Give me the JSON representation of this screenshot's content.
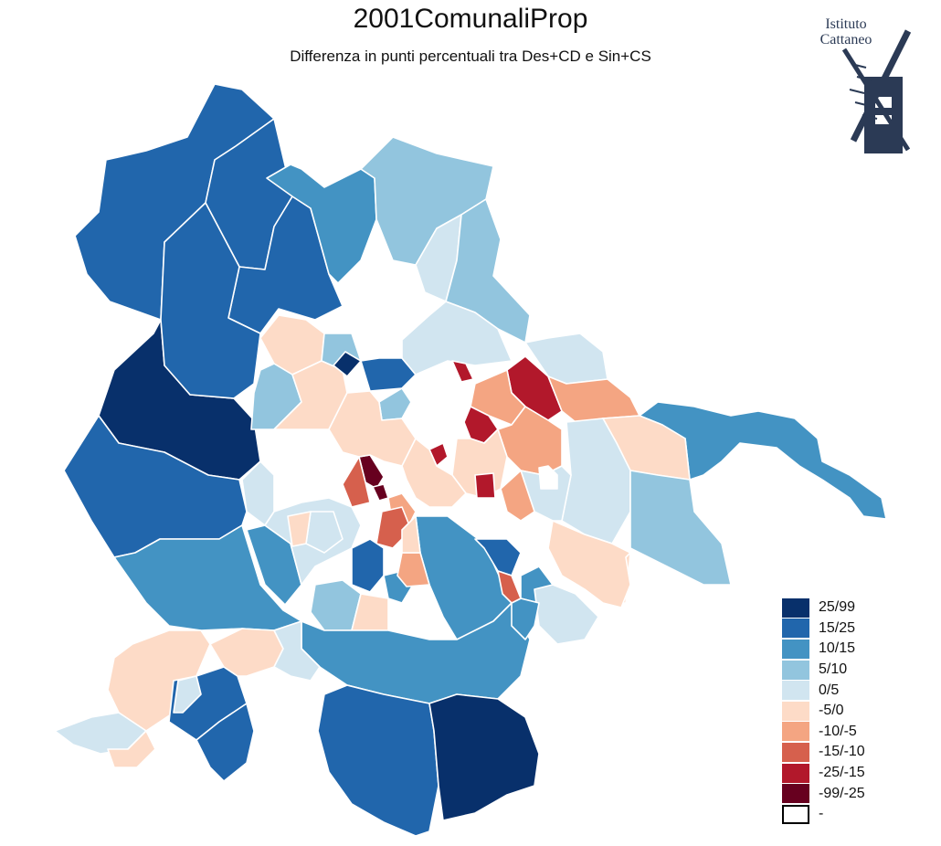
{
  "title": "2001ComunaliProp",
  "subtitle": "Differenza in punti percentuali tra Des+CD e Sin+CS",
  "logo": {
    "line1": "Istituto",
    "line2": "Cattaneo",
    "icon": "windmill-icon",
    "color": "#2b3a55"
  },
  "legend": [
    {
      "label": "25/99",
      "color": "#08306b"
    },
    {
      "label": "15/25",
      "color": "#2166ac"
    },
    {
      "label": "10/15",
      "color": "#4393c3"
    },
    {
      "label": "5/10",
      "color": "#92c5de"
    },
    {
      "label": "0/5",
      "color": "#d1e5f0"
    },
    {
      "label": "-5/0",
      "color": "#fddbc7"
    },
    {
      "label": "-10/-5",
      "color": "#f4a582"
    },
    {
      "label": "-15/-10",
      "color": "#d6604d"
    },
    {
      "label": "-25/-15",
      "color": "#b2182b"
    },
    {
      "label": "-99/-25",
      "color": "#67001f"
    },
    {
      "label": "-",
      "color": "#ffffff"
    }
  ],
  "regions": [
    {
      "id": "nw-outer",
      "class": "15/25"
    },
    {
      "id": "north-1",
      "class": "15/25"
    },
    {
      "id": "north-2",
      "class": "15/25"
    },
    {
      "id": "north-3",
      "class": "10/15"
    },
    {
      "id": "north-4",
      "class": "5/10"
    },
    {
      "id": "north-5",
      "class": "0/5"
    },
    {
      "id": "north-6",
      "class": "5/10"
    },
    {
      "id": "west-big",
      "class": "25/99"
    },
    {
      "id": "west-2",
      "class": "15/25"
    },
    {
      "id": "west-3",
      "class": "15/25"
    },
    {
      "id": "north-white",
      "class": "-"
    },
    {
      "id": "center-n-1",
      "class": "-5/0"
    },
    {
      "id": "center-n-2",
      "class": "5/10"
    },
    {
      "id": "center-n-3",
      "class": "15/25"
    },
    {
      "id": "center-n-4",
      "class": "25/99"
    },
    {
      "id": "center-n-5",
      "class": "0/5"
    },
    {
      "id": "center-n-6",
      "class": "5/10"
    },
    {
      "id": "ne-1",
      "class": "0/5"
    },
    {
      "id": "ne-2",
      "class": "-25/-15"
    },
    {
      "id": "ne-3",
      "class": "-10/-5"
    },
    {
      "id": "ne-4",
      "class": "-10/-5"
    },
    {
      "id": "east-1",
      "class": "10/15"
    },
    {
      "id": "east-2",
      "class": "-5/0"
    },
    {
      "id": "east-3",
      "class": "0/5"
    },
    {
      "id": "east-4",
      "class": "5/10"
    },
    {
      "id": "east-5",
      "class": "-5/0"
    },
    {
      "id": "center-1",
      "class": "-25/-15"
    },
    {
      "id": "center-2",
      "class": "-10/-5"
    },
    {
      "id": "center-3",
      "class": "-5/0"
    },
    {
      "id": "center-4",
      "class": "0/5"
    },
    {
      "id": "center-5",
      "class": "-99/-25"
    },
    {
      "id": "center-6",
      "class": "-99/-25"
    },
    {
      "id": "center-7",
      "class": "-5/0"
    },
    {
      "id": "center-8",
      "class": "-15/-10"
    },
    {
      "id": "center-9",
      "class": "-10/-5"
    },
    {
      "id": "center-10",
      "class": "-25/-15"
    },
    {
      "id": "center-11",
      "class": "-25/-15"
    },
    {
      "id": "center-12",
      "class": "-5/0"
    },
    {
      "id": "center-13",
      "class": "-10/-5"
    },
    {
      "id": "center-14",
      "class": "-15/-10"
    },
    {
      "id": "center-15",
      "class": "-25/-15"
    },
    {
      "id": "center-16",
      "class": "-"
    },
    {
      "id": "sc-1",
      "class": "10/15"
    },
    {
      "id": "sc-2",
      "class": "0/5"
    },
    {
      "id": "sc-3",
      "class": "15/25"
    },
    {
      "id": "sc-4",
      "class": "10/15"
    },
    {
      "id": "sc-5",
      "class": "5/10"
    },
    {
      "id": "sc-6",
      "class": "-5/0"
    },
    {
      "id": "sc-7",
      "class": "15/25"
    },
    {
      "id": "sc-8",
      "class": "10/15"
    },
    {
      "id": "sc-9",
      "class": "-10/-5"
    },
    {
      "id": "sc-10",
      "class": "-5/0"
    },
    {
      "id": "sc-11",
      "class": "0/5"
    },
    {
      "id": "sc-12",
      "class": "-5/0"
    },
    {
      "id": "sw-1",
      "class": "-5/0"
    },
    {
      "id": "sw-2",
      "class": "0/5"
    },
    {
      "id": "sw-3",
      "class": "-5/0"
    },
    {
      "id": "sw-4",
      "class": "15/25"
    },
    {
      "id": "sw-5",
      "class": "15/25"
    },
    {
      "id": "sw-6",
      "class": "0/5"
    },
    {
      "id": "sw-7",
      "class": "-5/0"
    },
    {
      "id": "south-1",
      "class": "10/15"
    },
    {
      "id": "south-2",
      "class": "15/25"
    },
    {
      "id": "south-3",
      "class": "25/99"
    },
    {
      "id": "south-4",
      "class": "0/5"
    },
    {
      "id": "se-1",
      "class": "-5/0"
    },
    {
      "id": "se-2",
      "class": "0/5"
    },
    {
      "id": "se-3",
      "class": "10/15"
    },
    {
      "id": "se-4",
      "class": "-15/-10"
    },
    {
      "id": "west-4",
      "class": "10/15"
    },
    {
      "id": "west-5",
      "class": "0/5"
    },
    {
      "id": "west-6",
      "class": "10/15"
    },
    {
      "id": "west-7",
      "class": "-5/0"
    },
    {
      "id": "west-8",
      "class": "5/10"
    }
  ]
}
